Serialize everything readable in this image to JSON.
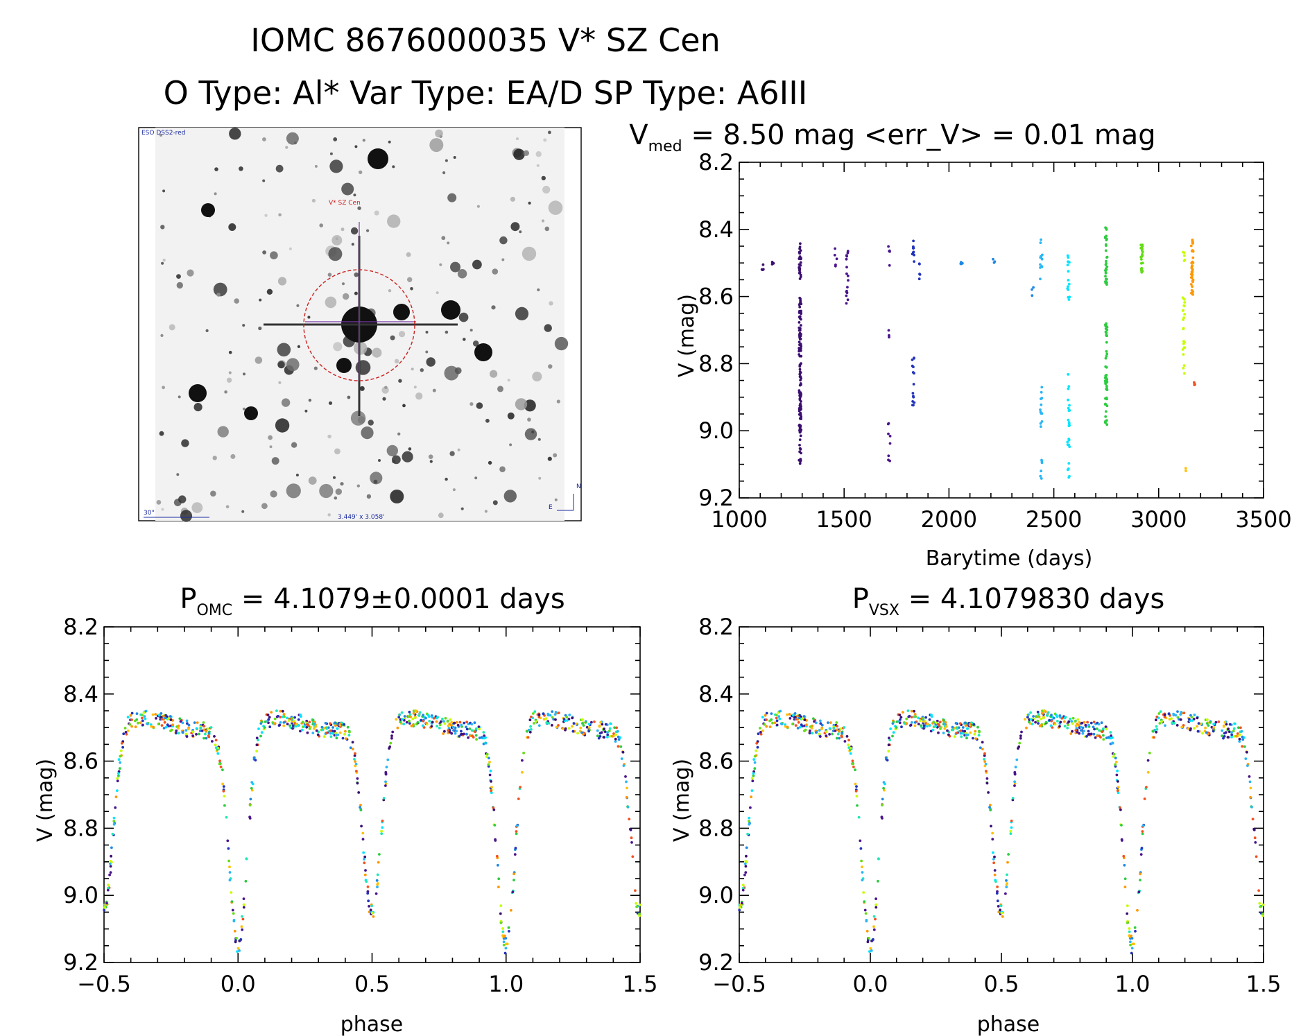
{
  "title": {
    "line1": "IOMC 8676000035   V* SZ Cen",
    "line2": "O Type: Al*  Var Type: EA/D  SP Type: A6III"
  },
  "finder_image": {
    "survey_label": "ESO DSS2-red",
    "target_label": "V* SZ Cen",
    "scale_label": "30\"",
    "fov_label": "3.449' x 3.058'",
    "north_label": "N",
    "east_label": "E",
    "colors": {
      "circle": "#cc2020",
      "crosshair": "#7a3aa8",
      "text": "#1a2aa0"
    }
  },
  "colors": [
    "#3b0f70",
    "#4a148c",
    "#2233bb",
    "#1e88e5",
    "#29b6f6",
    "#00e5ff",
    "#1de9b6",
    "#2ecc40",
    "#64dd17",
    "#c6ff00",
    "#ffc107",
    "#ff9800",
    "#f4511e"
  ],
  "chart_data": [
    {
      "type": "scatter",
      "id": "lightcurve",
      "title_main": "V",
      "title_sub": "med",
      "title_rest": " = 8.50 mag <err_V> = 0.01 mag",
      "xlabel": "Barytime (days)",
      "ylabel": "V (mag)",
      "xlim": [
        1000,
        3500
      ],
      "ylim": [
        9.2,
        8.2
      ],
      "xticks": [
        1000,
        1500,
        2000,
        2500,
        3000,
        3500
      ],
      "xtick_labels": [
        "1000",
        "1500",
        "2000",
        "2500",
        "3000",
        "3500"
      ],
      "yticks": [
        8.2,
        8.4,
        8.6,
        8.8,
        9.0,
        9.2
      ],
      "ytick_labels": [
        "8.2",
        "8.4",
        "8.6",
        "8.8",
        "9.0",
        "9.2"
      ],
      "groups": [
        {
          "t": 1110,
          "ranges": [
            [
              8.5,
              8.53
            ]
          ],
          "n": 4,
          "color": 0
        },
        {
          "t": 1160,
          "ranges": [
            [
              8.48,
              8.51
            ]
          ],
          "n": 4,
          "color": 0
        },
        {
          "t": 1290,
          "ranges": [
            [
              8.44,
              8.55
            ],
            [
              8.6,
              9.1
            ]
          ],
          "n": 160,
          "color": 0
        },
        {
          "t": 1460,
          "ranges": [
            [
              8.45,
              8.51
            ]
          ],
          "n": 5,
          "color": 1
        },
        {
          "t": 1515,
          "ranges": [
            [
              8.46,
              8.65
            ]
          ],
          "n": 16,
          "color": 1
        },
        {
          "t": 1715,
          "ranges": [
            [
              8.45,
              8.52
            ],
            [
              8.7,
              8.75
            ],
            [
              8.97,
              9.1
            ]
          ],
          "n": 16,
          "color": 1
        },
        {
          "t": 1830,
          "ranges": [
            [
              8.42,
              8.52
            ],
            [
              8.76,
              8.93
            ]
          ],
          "n": 24,
          "color": 2
        },
        {
          "t": 1860,
          "ranges": [
            [
              8.49,
              8.55
            ]
          ],
          "n": 5,
          "color": 2
        },
        {
          "t": 2060,
          "ranges": [
            [
              8.48,
              8.51
            ]
          ],
          "n": 4,
          "color": 3
        },
        {
          "t": 2215,
          "ranges": [
            [
              8.48,
              8.5
            ]
          ],
          "n": 3,
          "color": 3
        },
        {
          "t": 2400,
          "ranges": [
            [
              8.55,
              8.6
            ]
          ],
          "n": 3,
          "color": 3
        },
        {
          "t": 2440,
          "ranges": [
            [
              8.43,
              8.57
            ],
            [
              8.86,
              9.0
            ],
            [
              9.08,
              9.15
            ]
          ],
          "n": 30,
          "color": 4
        },
        {
          "t": 2570,
          "ranges": [
            [
              8.45,
              8.62
            ],
            [
              8.83,
              9.05
            ],
            [
              9.09,
              9.14
            ]
          ],
          "n": 40,
          "color": 5
        },
        {
          "t": 2750,
          "ranges": [
            [
              8.38,
              8.57
            ],
            [
              8.68,
              9.01
            ]
          ],
          "n": 80,
          "color": 7
        },
        {
          "t": 2920,
          "ranges": [
            [
              8.44,
              8.53
            ]
          ],
          "n": 28,
          "color": 8
        },
        {
          "t": 3120,
          "ranges": [
            [
              8.46,
              8.5
            ],
            [
              8.6,
              8.83
            ]
          ],
          "n": 28,
          "color": 9
        },
        {
          "t": 3125,
          "ranges": [
            [
              9.1,
              9.12
            ]
          ],
          "n": 2,
          "color": 10
        },
        {
          "t": 3160,
          "ranges": [
            [
              8.43,
              8.6
            ]
          ],
          "n": 40,
          "color": 11
        },
        {
          "t": 3170,
          "ranges": [
            [
              8.83,
              8.88
            ]
          ],
          "n": 4,
          "color": 12
        }
      ]
    },
    {
      "type": "scatter",
      "id": "fold_omc",
      "title_main": "P",
      "title_sub": "OMC",
      "title_rest": " = 4.1079±0.0001 days",
      "xlabel": "phase",
      "ylabel": "V (mag)",
      "xlim": [
        -0.5,
        1.5
      ],
      "ylim": [
        9.2,
        8.2
      ],
      "xticks": [
        -0.5,
        0.0,
        0.5,
        1.0,
        1.5
      ],
      "xtick_labels": [
        "−0.5",
        "0.0",
        "0.5",
        "1.0",
        "1.5"
      ],
      "yticks": [
        8.2,
        8.4,
        8.6,
        8.8,
        9.0,
        9.2
      ],
      "ytick_labels": [
        "8.2",
        "8.4",
        "8.6",
        "8.8",
        "9.0",
        "9.2"
      ],
      "model": {
        "out_of_eclipse": 8.49,
        "primary_depth": 9.15,
        "primary_width": 0.06,
        "secondary_depth": 9.05,
        "secondary_phase": 0.5,
        "secondary_width": 0.06
      },
      "n_points": 900
    },
    {
      "type": "scatter",
      "id": "fold_vsx",
      "title_main": "P",
      "title_sub": "VSX",
      "title_rest": " = 4.1079830 days",
      "xlabel": "phase",
      "ylabel": "V (mag)",
      "xlim": [
        -0.5,
        1.5
      ],
      "ylim": [
        9.2,
        8.2
      ],
      "xticks": [
        -0.5,
        0.0,
        0.5,
        1.0,
        1.5
      ],
      "xtick_labels": [
        "−0.5",
        "0.0",
        "0.5",
        "1.0",
        "1.5"
      ],
      "yticks": [
        8.2,
        8.4,
        8.6,
        8.8,
        9.0,
        9.2
      ],
      "ytick_labels": [
        "8.2",
        "8.4",
        "8.6",
        "8.8",
        "9.0",
        "9.2"
      ],
      "model": {
        "out_of_eclipse": 8.49,
        "primary_depth": 9.15,
        "primary_width": 0.06,
        "secondary_depth": 9.05,
        "secondary_phase": 0.5,
        "secondary_width": 0.06
      },
      "n_points": 900
    }
  ]
}
